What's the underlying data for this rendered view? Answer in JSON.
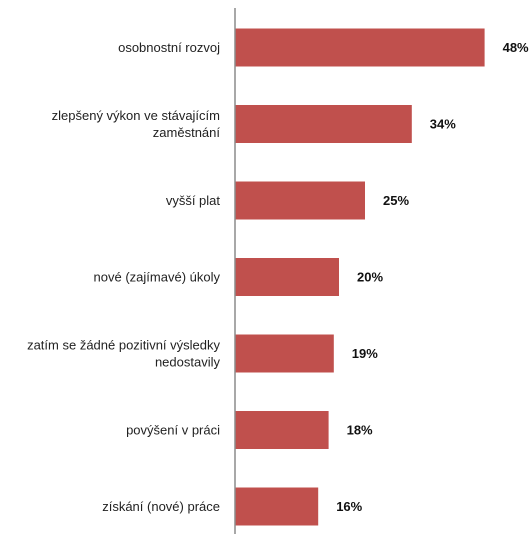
{
  "colors": {
    "bar": "#c0504d",
    "axis": "#8c8c8c",
    "text": "#222222"
  },
  "chart_data": {
    "type": "bar",
    "orientation": "horizontal",
    "categories": [
      [
        "osobnostní rozvoj"
      ],
      [
        "zlepšený výkon ve stávajícím",
        "zaměstnání"
      ],
      [
        "vyšší plat"
      ],
      [
        "nové (zajímavé) úkoly"
      ],
      [
        "zatím se žádné pozitivní výsledky",
        "nedostavily"
      ],
      [
        "povýšení v práci"
      ],
      [
        "získání (nové) práce"
      ]
    ],
    "values": [
      48,
      34,
      25,
      20,
      19,
      18,
      16
    ],
    "value_labels": [
      "48%",
      "34%",
      "25%",
      "20%",
      "19%",
      "18%",
      "16%"
    ],
    "unit": "%",
    "xlim": [
      0,
      50
    ],
    "grid": false,
    "legend": "none"
  }
}
